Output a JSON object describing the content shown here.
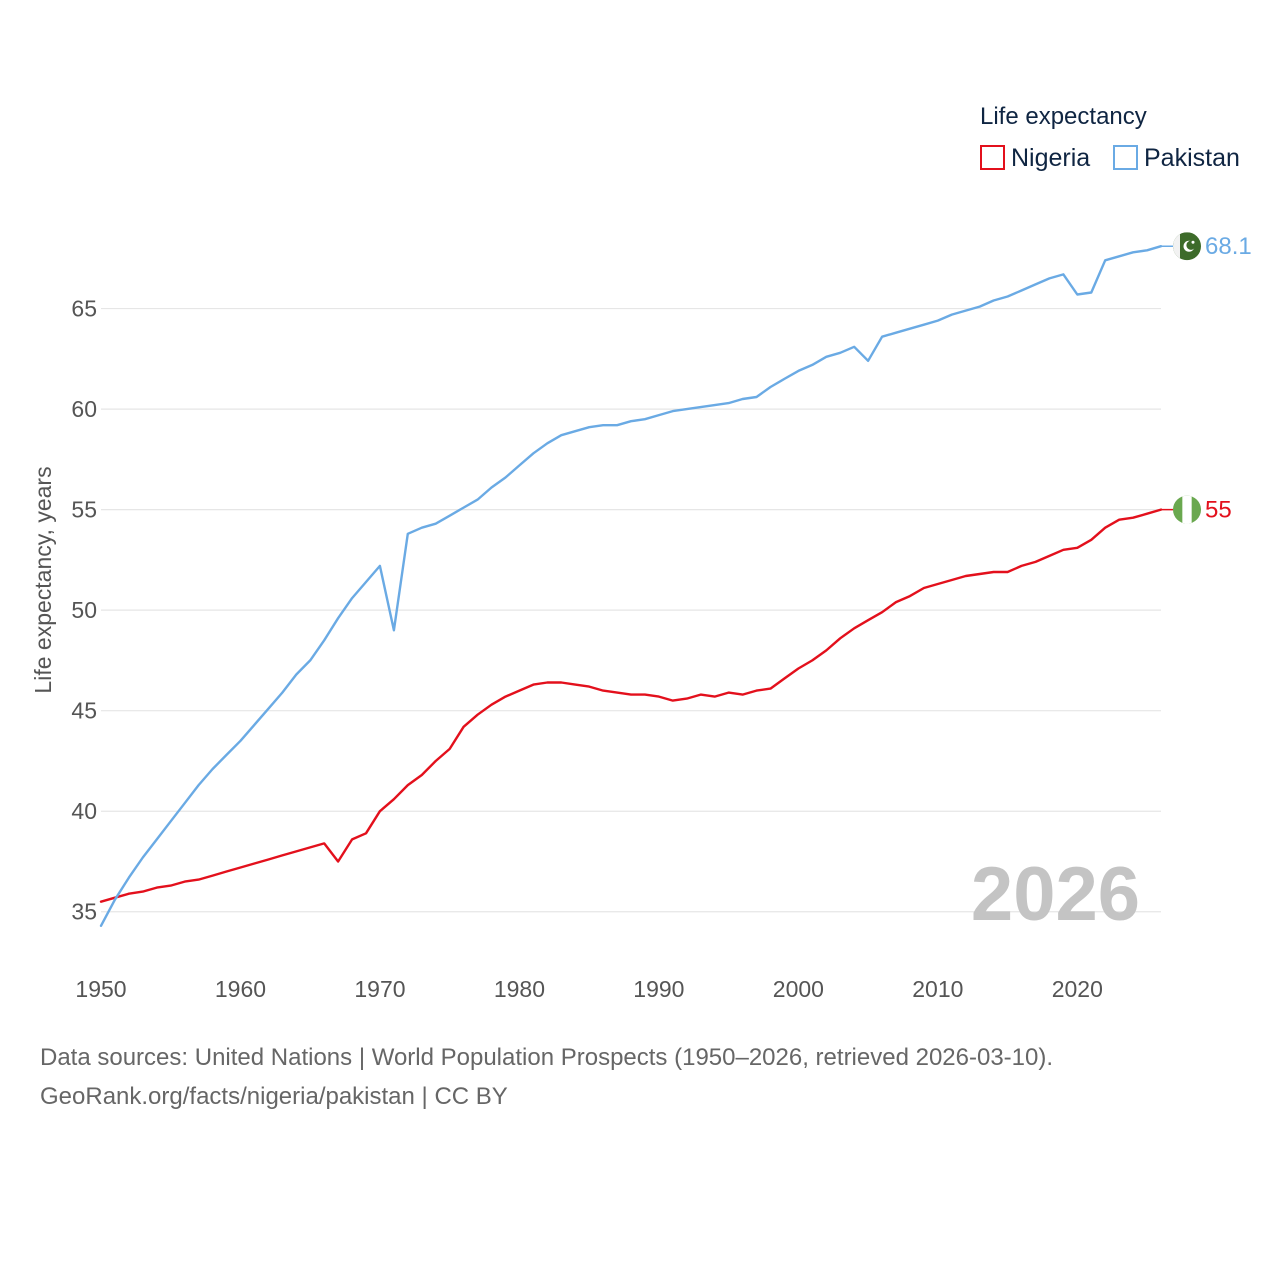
{
  "chart_data": {
    "type": "line",
    "legend_title": "Life expectancy",
    "ylabel": "Life expectancy, years",
    "xlim": [
      1950,
      2026
    ],
    "ylim": [
      32.6,
      70.4
    ],
    "x_ticks": [
      1950,
      1960,
      1970,
      1980,
      1990,
      2000,
      2010,
      2020
    ],
    "y_ticks": [
      35,
      40,
      45,
      50,
      55,
      60,
      65
    ],
    "year_watermark": "2026",
    "legend_placement": "top-right",
    "series": [
      {
        "name": "Nigeria",
        "color": "#e3101c",
        "flag_icon": "nigeria-flag-icon",
        "end_label": "55",
        "points": [
          [
            1950,
            35.5
          ],
          [
            1951,
            35.7
          ],
          [
            1952,
            35.9
          ],
          [
            1953,
            36.0
          ],
          [
            1954,
            36.2
          ],
          [
            1955,
            36.3
          ],
          [
            1956,
            36.5
          ],
          [
            1957,
            36.6
          ],
          [
            1958,
            36.8
          ],
          [
            1959,
            37.0
          ],
          [
            1960,
            37.2
          ],
          [
            1961,
            37.4
          ],
          [
            1962,
            37.6
          ],
          [
            1963,
            37.8
          ],
          [
            1964,
            38.0
          ],
          [
            1965,
            38.2
          ],
          [
            1966,
            38.4
          ],
          [
            1967,
            37.5
          ],
          [
            1968,
            38.6
          ],
          [
            1969,
            38.9
          ],
          [
            1970,
            40.0
          ],
          [
            1971,
            40.6
          ],
          [
            1972,
            41.3
          ],
          [
            1973,
            41.8
          ],
          [
            1974,
            42.5
          ],
          [
            1975,
            43.1
          ],
          [
            1976,
            44.2
          ],
          [
            1977,
            44.8
          ],
          [
            1978,
            45.3
          ],
          [
            1979,
            45.7
          ],
          [
            1980,
            46.0
          ],
          [
            1981,
            46.3
          ],
          [
            1982,
            46.4
          ],
          [
            1983,
            46.4
          ],
          [
            1984,
            46.3
          ],
          [
            1985,
            46.2
          ],
          [
            1986,
            46.0
          ],
          [
            1987,
            45.9
          ],
          [
            1988,
            45.8
          ],
          [
            1989,
            45.8
          ],
          [
            1990,
            45.7
          ],
          [
            1991,
            45.5
          ],
          [
            1992,
            45.6
          ],
          [
            1993,
            45.8
          ],
          [
            1994,
            45.7
          ],
          [
            1995,
            45.9
          ],
          [
            1996,
            45.8
          ],
          [
            1997,
            46.0
          ],
          [
            1998,
            46.1
          ],
          [
            1999,
            46.6
          ],
          [
            2000,
            47.1
          ],
          [
            2001,
            47.5
          ],
          [
            2002,
            48.0
          ],
          [
            2003,
            48.6
          ],
          [
            2004,
            49.1
          ],
          [
            2005,
            49.5
          ],
          [
            2006,
            49.9
          ],
          [
            2007,
            50.4
          ],
          [
            2008,
            50.7
          ],
          [
            2009,
            51.1
          ],
          [
            2010,
            51.3
          ],
          [
            2011,
            51.5
          ],
          [
            2012,
            51.7
          ],
          [
            2013,
            51.8
          ],
          [
            2014,
            51.9
          ],
          [
            2015,
            51.9
          ],
          [
            2016,
            52.2
          ],
          [
            2017,
            52.4
          ],
          [
            2018,
            52.7
          ],
          [
            2019,
            53.0
          ],
          [
            2020,
            53.1
          ],
          [
            2021,
            53.5
          ],
          [
            2022,
            54.1
          ],
          [
            2023,
            54.5
          ],
          [
            2024,
            54.6
          ],
          [
            2025,
            54.8
          ],
          [
            2026,
            55.0
          ]
        ]
      },
      {
        "name": "Pakistan",
        "color": "#6aaae4",
        "flag_icon": "pakistan-flag-icon",
        "end_label": "68.1",
        "points": [
          [
            1950,
            34.3
          ],
          [
            1951,
            35.6
          ],
          [
            1952,
            36.7
          ],
          [
            1953,
            37.7
          ],
          [
            1954,
            38.6
          ],
          [
            1955,
            39.5
          ],
          [
            1956,
            40.4
          ],
          [
            1957,
            41.3
          ],
          [
            1958,
            42.1
          ],
          [
            1959,
            42.8
          ],
          [
            1960,
            43.5
          ],
          [
            1961,
            44.3
          ],
          [
            1962,
            45.1
          ],
          [
            1963,
            45.9
          ],
          [
            1964,
            46.8
          ],
          [
            1965,
            47.5
          ],
          [
            1966,
            48.5
          ],
          [
            1967,
            49.6
          ],
          [
            1968,
            50.6
          ],
          [
            1969,
            51.4
          ],
          [
            1970,
            52.2
          ],
          [
            1971,
            49.0
          ],
          [
            1972,
            53.8
          ],
          [
            1973,
            54.1
          ],
          [
            1974,
            54.3
          ],
          [
            1975,
            54.7
          ],
          [
            1976,
            55.1
          ],
          [
            1977,
            55.5
          ],
          [
            1978,
            56.1
          ],
          [
            1979,
            56.6
          ],
          [
            1980,
            57.2
          ],
          [
            1981,
            57.8
          ],
          [
            1982,
            58.3
          ],
          [
            1983,
            58.7
          ],
          [
            1984,
            58.9
          ],
          [
            1985,
            59.1
          ],
          [
            1986,
            59.2
          ],
          [
            1987,
            59.2
          ],
          [
            1988,
            59.4
          ],
          [
            1989,
            59.5
          ],
          [
            1990,
            59.7
          ],
          [
            1991,
            59.9
          ],
          [
            1992,
            60.0
          ],
          [
            1993,
            60.1
          ],
          [
            1994,
            60.2
          ],
          [
            1995,
            60.3
          ],
          [
            1996,
            60.5
          ],
          [
            1997,
            60.6
          ],
          [
            1998,
            61.1
          ],
          [
            1999,
            61.5
          ],
          [
            2000,
            61.9
          ],
          [
            2001,
            62.2
          ],
          [
            2002,
            62.6
          ],
          [
            2003,
            62.8
          ],
          [
            2004,
            63.1
          ],
          [
            2005,
            62.4
          ],
          [
            2006,
            63.6
          ],
          [
            2007,
            63.8
          ],
          [
            2008,
            64.0
          ],
          [
            2009,
            64.2
          ],
          [
            2010,
            64.4
          ],
          [
            2011,
            64.7
          ],
          [
            2012,
            64.9
          ],
          [
            2013,
            65.1
          ],
          [
            2014,
            65.4
          ],
          [
            2015,
            65.6
          ],
          [
            2016,
            65.9
          ],
          [
            2017,
            66.2
          ],
          [
            2018,
            66.5
          ],
          [
            2019,
            66.7
          ],
          [
            2020,
            65.7
          ],
          [
            2021,
            65.8
          ],
          [
            2022,
            67.4
          ],
          [
            2023,
            67.6
          ],
          [
            2024,
            67.8
          ],
          [
            2025,
            67.9
          ],
          [
            2026,
            68.1
          ]
        ]
      }
    ]
  },
  "footer": {
    "source_line": "Data sources: United Nations | World Population Prospects (1950–2026, retrieved 2026-03-10).",
    "credit_line": "GeoRank.org/facts/nigeria/pakistan | CC BY"
  }
}
